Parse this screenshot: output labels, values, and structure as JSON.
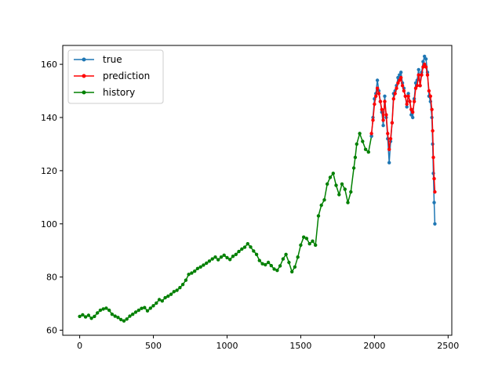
{
  "chart_data": {
    "type": "line",
    "xlim": [
      -115,
      2525
    ],
    "ylim": [
      58.1,
      167.1
    ],
    "x_ticks": [
      0,
      500,
      1000,
      1500,
      2000,
      2500
    ],
    "y_ticks": [
      60,
      80,
      100,
      120,
      140,
      160
    ],
    "grid": false,
    "legend_placement": "top-left",
    "series": [
      {
        "name": "true",
        "color": "#1f77b4",
        "marker": "circle",
        "x": [
          1980,
          1990,
          2000,
          2010,
          2020,
          2030,
          2040,
          2050,
          2060,
          2070,
          2080,
          2090,
          2100,
          2110,
          2120,
          2130,
          2140,
          2150,
          2160,
          2170,
          2180,
          2190,
          2200,
          2210,
          2220,
          2230,
          2240,
          2250,
          2260,
          2270,
          2280,
          2290,
          2300,
          2310,
          2320,
          2330,
          2340,
          2350,
          2360,
          2370,
          2380,
          2390,
          2395,
          2400,
          2405,
          2410
        ],
        "values": [
          133,
          140,
          147,
          149,
          154,
          150,
          146,
          142,
          137,
          148,
          140,
          132,
          123,
          131,
          138,
          149,
          150,
          152,
          155,
          156,
          157,
          153,
          151,
          148,
          144,
          149,
          146,
          141,
          140,
          147,
          153,
          154,
          158,
          152,
          157,
          161,
          163,
          162,
          157,
          148,
          146,
          140,
          130,
          119,
          108,
          100
        ]
      },
      {
        "name": "prediction",
        "color": "#ff0000",
        "marker": "circle",
        "x": [
          1980,
          1990,
          2000,
          2010,
          2020,
          2030,
          2040,
          2050,
          2060,
          2070,
          2080,
          2090,
          2100,
          2110,
          2120,
          2130,
          2140,
          2150,
          2160,
          2170,
          2180,
          2190,
          2200,
          2210,
          2220,
          2230,
          2240,
          2250,
          2260,
          2270,
          2280,
          2290,
          2300,
          2310,
          2320,
          2330,
          2340,
          2350,
          2360,
          2370,
          2380,
          2390,
          2395,
          2400,
          2405,
          2410
        ],
        "values": [
          134,
          139,
          145,
          148,
          151,
          149,
          146,
          143,
          139,
          146,
          141,
          134,
          128,
          132,
          138,
          147,
          149,
          151,
          153,
          154,
          155,
          152,
          150,
          148,
          145,
          148,
          146,
          143,
          142,
          146,
          151,
          152,
          156,
          152,
          156,
          159,
          160,
          159,
          156,
          150,
          148,
          143,
          135,
          125,
          117,
          112
        ]
      },
      {
        "name": "history",
        "color": "#008000",
        "marker": "circle",
        "x": [
          0,
          20,
          40,
          60,
          80,
          100,
          120,
          140,
          160,
          180,
          200,
          220,
          240,
          260,
          280,
          300,
          320,
          340,
          360,
          380,
          400,
          420,
          440,
          460,
          480,
          500,
          520,
          540,
          560,
          580,
          600,
          620,
          640,
          660,
          680,
          700,
          720,
          740,
          760,
          780,
          800,
          820,
          840,
          860,
          880,
          900,
          920,
          940,
          960,
          980,
          1000,
          1020,
          1040,
          1060,
          1080,
          1100,
          1120,
          1140,
          1160,
          1180,
          1200,
          1220,
          1240,
          1260,
          1280,
          1300,
          1320,
          1340,
          1360,
          1380,
          1400,
          1420,
          1440,
          1460,
          1480,
          1500,
          1520,
          1540,
          1560,
          1580,
          1600,
          1620,
          1640,
          1660,
          1680,
          1700,
          1720,
          1740,
          1760,
          1780,
          1800,
          1820,
          1840,
          1860,
          1870,
          1880,
          1900,
          1920,
          1940,
          1960,
          1980
        ],
        "values": [
          65.2,
          65.8,
          65.0,
          65.6,
          64.5,
          65.2,
          66.5,
          67.5,
          68.0,
          68.3,
          67.5,
          66.0,
          65.3,
          64.8,
          64.0,
          63.5,
          64.2,
          65.3,
          66.0,
          66.8,
          67.5,
          68.2,
          68.5,
          67.3,
          68.3,
          69.2,
          70.2,
          71.5,
          71.0,
          72.2,
          72.8,
          73.5,
          74.5,
          75.0,
          76.0,
          77.2,
          78.8,
          81.0,
          81.5,
          82.2,
          83.2,
          83.8,
          84.5,
          85.2,
          86.0,
          86.8,
          87.5,
          86.5,
          87.5,
          88.2,
          87.3,
          86.6,
          87.8,
          88.5,
          89.6,
          90.5,
          91.2,
          92.5,
          91.3,
          89.8,
          88.5,
          86.2,
          85.0,
          84.6,
          85.5,
          84.3,
          83.0,
          82.5,
          84.2,
          86.8,
          88.5,
          85.5,
          82.0,
          83.8,
          87.5,
          92.0,
          95.0,
          94.5,
          92.5,
          93.5,
          92.0,
          103.0,
          107.0,
          109.0,
          115.0,
          117.5,
          119.0,
          114.5,
          111.0,
          115.0,
          113.0,
          108.0,
          112.0,
          121.0,
          125.0,
          130.0,
          134.0,
          131.0,
          128.0,
          127.0,
          133.0
        ]
      }
    ]
  }
}
